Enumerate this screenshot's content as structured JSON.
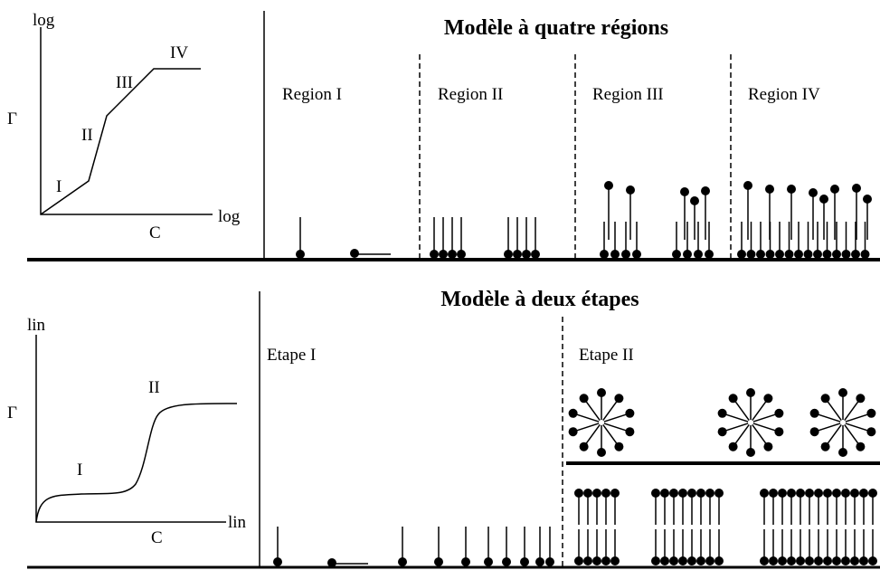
{
  "top": {
    "graph": {
      "y_scale": "log",
      "y_symbol": "Γ",
      "x_scale": "log",
      "x_symbol": "C",
      "segments": [
        "I",
        "II",
        "III",
        "IV"
      ]
    },
    "title": "Modèle à quatre régions",
    "regions": [
      "Region I",
      "Region II",
      "Region III",
      "Region IV"
    ]
  },
  "bottom": {
    "graph": {
      "y_scale": "lin",
      "y_symbol": "Γ",
      "x_scale": "lin",
      "x_symbol": "C",
      "segments": [
        "I",
        "II"
      ]
    },
    "title": "Modèle à deux étapes",
    "stages": [
      "Etape I",
      "Etape II"
    ]
  }
}
